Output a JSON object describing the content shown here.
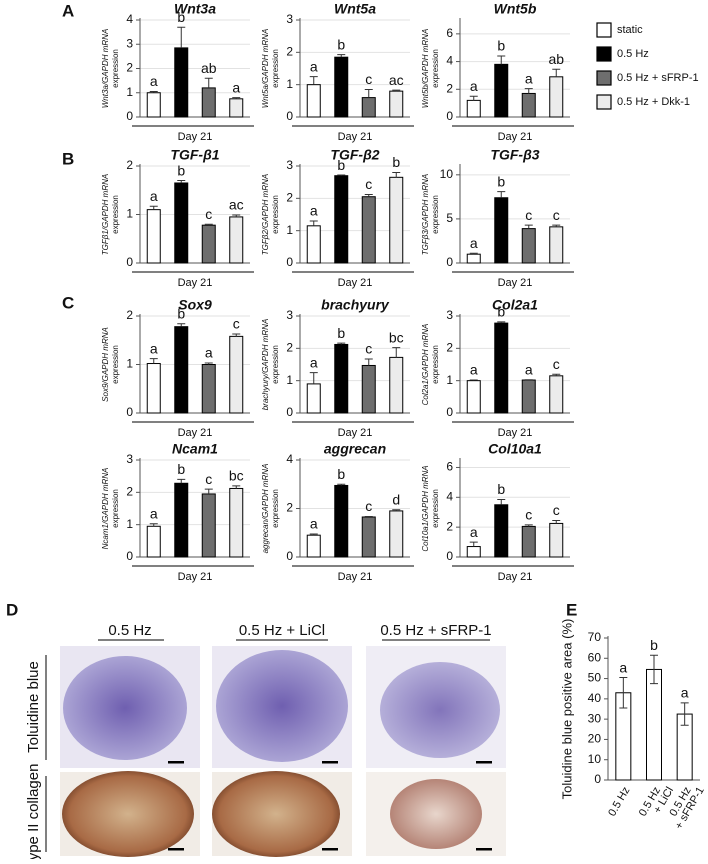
{
  "panels": [
    "A",
    "B",
    "C",
    "D",
    "E"
  ],
  "legend": {
    "entries": [
      {
        "name": "static",
        "color": "#ffffff"
      },
      {
        "name": "0.5 Hz",
        "color": "#000000"
      },
      {
        "name": "0.5 Hz + sFRP-1",
        "color": "#6e6e6e"
      },
      {
        "name": "0.5 Hz + Dkk-1",
        "color": "#ececec"
      }
    ]
  },
  "histology": {
    "columns": [
      "0.5 Hz",
      "0.5 Hz + LiCl",
      "0.5 Hz + sFRP-1"
    ],
    "rows": [
      "Toluidine blue",
      "type II collagen"
    ]
  },
  "chart_data": [
    {
      "type": "bar",
      "title": "Wnt3a",
      "ylabel": [
        "Wnt3a/GAPDH mRNA",
        "expression"
      ],
      "xlabel": "Day 21",
      "values": [
        1.0,
        2.85,
        1.2,
        0.75
      ],
      "errors": [
        0.05,
        0.85,
        0.4,
        0.05
      ],
      "annotations": [
        "a",
        "b",
        "ab",
        "a"
      ],
      "colors": [
        "#ffffff",
        "#000000",
        "#6e6e6e",
        "#ececec"
      ],
      "ylim": [
        0,
        4
      ],
      "yticks": [
        0,
        1,
        2,
        3,
        4
      ],
      "grid": true
    },
    {
      "type": "bar",
      "title": "Wnt5a",
      "ylabel": [
        "Wnt5a/GAPDH mRNA",
        "expression"
      ],
      "xlabel": "Day 21",
      "values": [
        1.0,
        1.85,
        0.6,
        0.8
      ],
      "errors": [
        0.25,
        0.08,
        0.25,
        0.03
      ],
      "annotations": [
        "a",
        "b",
        "c",
        "ac"
      ],
      "colors": [
        "#ffffff",
        "#000000",
        "#6e6e6e",
        "#ececec"
      ],
      "ylim": [
        0,
        3
      ],
      "yticks": [
        0,
        1,
        2,
        3
      ],
      "grid": true
    },
    {
      "type": "bar",
      "title": "Wnt5b",
      "ylabel": [
        "Wnt5b/GAPDH mRNA",
        "expression"
      ],
      "xlabel": "Day 21",
      "values": [
        1.2,
        3.8,
        1.7,
        2.9
      ],
      "errors": [
        0.3,
        0.6,
        0.35,
        0.55
      ],
      "annotations": [
        "a",
        "b",
        "a",
        "ab"
      ],
      "colors": [
        "#ffffff",
        "#000000",
        "#6e6e6e",
        "#ececec"
      ],
      "ylim": [
        0,
        7
      ],
      "yticks": [
        0,
        2,
        4,
        6
      ],
      "grid": true
    },
    {
      "type": "bar",
      "title": "TGF-β1",
      "ylabel": [
        "TGFβ1/GAPDH mRNA",
        "expression"
      ],
      "xlabel": "Day 21",
      "values": [
        1.1,
        1.65,
        0.78,
        0.95
      ],
      "errors": [
        0.07,
        0.05,
        0.02,
        0.04
      ],
      "annotations": [
        "a",
        "b",
        "c",
        "ac"
      ],
      "colors": [
        "#ffffff",
        "#000000",
        "#6e6e6e",
        "#ececec"
      ],
      "ylim": [
        0,
        2
      ],
      "yticks": [
        0,
        1,
        2
      ],
      "grid": true
    },
    {
      "type": "bar",
      "title": "TGF-β2",
      "ylabel": [
        "TGFβ2/GAPDH mRNA",
        "expression"
      ],
      "xlabel": "Day 21",
      "values": [
        1.15,
        2.7,
        2.05,
        2.65
      ],
      "errors": [
        0.15,
        0.02,
        0.07,
        0.15
      ],
      "annotations": [
        "a",
        "b",
        "c",
        "b"
      ],
      "colors": [
        "#ffffff",
        "#000000",
        "#6e6e6e",
        "#ececec"
      ],
      "ylim": [
        0,
        3
      ],
      "yticks": [
        0,
        1,
        2,
        3
      ],
      "grid": true
    },
    {
      "type": "bar",
      "title": "TGF-β3",
      "ylabel": [
        "TGFβ3/GAPDH mRNA",
        "expression"
      ],
      "xlabel": "Day 21",
      "values": [
        1.0,
        7.4,
        3.9,
        4.1
      ],
      "errors": [
        0.1,
        0.7,
        0.4,
        0.2
      ],
      "annotations": [
        "a",
        "b",
        "c",
        "c"
      ],
      "colors": [
        "#ffffff",
        "#000000",
        "#6e6e6e",
        "#ececec"
      ],
      "ylim": [
        0,
        11
      ],
      "yticks": [
        0,
        5,
        10
      ],
      "grid": true
    },
    {
      "type": "bar",
      "title": "Sox9",
      "ylabel": [
        "Sox9/GAPDH mRNA",
        "expression"
      ],
      "xlabel": "Day 21",
      "values": [
        1.02,
        1.78,
        1.0,
        1.58
      ],
      "errors": [
        0.1,
        0.06,
        0.03,
        0.05
      ],
      "annotations": [
        "a",
        "b",
        "a",
        "c"
      ],
      "colors": [
        "#ffffff",
        "#000000",
        "#6e6e6e",
        "#ececec"
      ],
      "ylim": [
        0,
        2
      ],
      "yticks": [
        0,
        1,
        2
      ],
      "grid": true
    },
    {
      "type": "bar",
      "title": "brachyury",
      "ylabel": [
        "brachyury/GAPDH mRNA",
        "expression"
      ],
      "xlabel": "Day 21",
      "values": [
        0.9,
        2.12,
        1.47,
        1.72
      ],
      "errors": [
        0.35,
        0.04,
        0.2,
        0.3
      ],
      "annotations": [
        "a",
        "b",
        "c",
        "bc"
      ],
      "colors": [
        "#ffffff",
        "#000000",
        "#6e6e6e",
        "#ececec"
      ],
      "ylim": [
        0,
        3
      ],
      "yticks": [
        0,
        1,
        2,
        3
      ],
      "grid": true
    },
    {
      "type": "bar",
      "title": "Col2a1",
      "ylabel": [
        "Col2a1/GAPDH mRNA",
        "expression"
      ],
      "xlabel": "Day 21",
      "values": [
        1.0,
        2.78,
        1.02,
        1.15
      ],
      "errors": [
        0.02,
        0.04,
        0.01,
        0.05
      ],
      "annotations": [
        "a",
        "b",
        "a",
        "c"
      ],
      "colors": [
        "#ffffff",
        "#000000",
        "#6e6e6e",
        "#ececec"
      ],
      "ylim": [
        0,
        3
      ],
      "yticks": [
        0,
        1,
        2,
        3
      ],
      "grid": true
    },
    {
      "type": "bar",
      "title": "Ncam1",
      "ylabel": [
        "Ncam1/GAPDH mRNA",
        "expression"
      ],
      "xlabel": "Day 21",
      "values": [
        0.95,
        2.28,
        1.95,
        2.12
      ],
      "errors": [
        0.08,
        0.12,
        0.15,
        0.08
      ],
      "annotations": [
        "a",
        "b",
        "c",
        "bc"
      ],
      "colors": [
        "#ffffff",
        "#000000",
        "#6e6e6e",
        "#ececec"
      ],
      "ylim": [
        0,
        3
      ],
      "yticks": [
        0,
        1,
        2,
        3
      ],
      "grid": true
    },
    {
      "type": "bar",
      "title": "aggrecan",
      "ylabel": [
        "aggrecan/GAPDH mRNA",
        "expression"
      ],
      "xlabel": "Day 21",
      "values": [
        0.9,
        2.95,
        1.65,
        1.9
      ],
      "errors": [
        0.05,
        0.05,
        0.02,
        0.05
      ],
      "annotations": [
        "a",
        "b",
        "c",
        "d"
      ],
      "colors": [
        "#ffffff",
        "#000000",
        "#6e6e6e",
        "#ececec"
      ],
      "ylim": [
        0,
        4
      ],
      "yticks": [
        0,
        2,
        4
      ],
      "grid": true
    },
    {
      "type": "bar",
      "title": "Col10a1",
      "ylabel": [
        "Col10a1/GAPDH mRNA",
        "expression"
      ],
      "xlabel": "Day 21",
      "values": [
        0.7,
        3.5,
        2.05,
        2.25
      ],
      "errors": [
        0.3,
        0.35,
        0.1,
        0.2
      ],
      "annotations": [
        "a",
        "b",
        "c",
        "c"
      ],
      "colors": [
        "#ffffff",
        "#000000",
        "#6e6e6e",
        "#ececec"
      ],
      "ylim": [
        0,
        6.5
      ],
      "yticks": [
        0,
        2,
        4,
        6
      ],
      "grid": true
    },
    {
      "type": "bar",
      "ylabel": [
        "Toluidine blue positive area (%)"
      ],
      "categories": [
        [
          "0.5 Hz"
        ],
        [
          "0.5 Hz",
          "+ LiCl"
        ],
        [
          "0.5 Hz",
          "+ sFRP-1"
        ]
      ],
      "values": [
        43,
        54.5,
        32.5
      ],
      "errors": [
        7.5,
        7,
        5.5
      ],
      "annotations": [
        "a",
        "b",
        "a"
      ],
      "colors": [
        "#ffffff",
        "#ffffff",
        "#ffffff"
      ],
      "ylim": [
        0,
        70
      ],
      "yticks": [
        0,
        10,
        20,
        30,
        40,
        50,
        60,
        70
      ],
      "grid": false
    }
  ]
}
